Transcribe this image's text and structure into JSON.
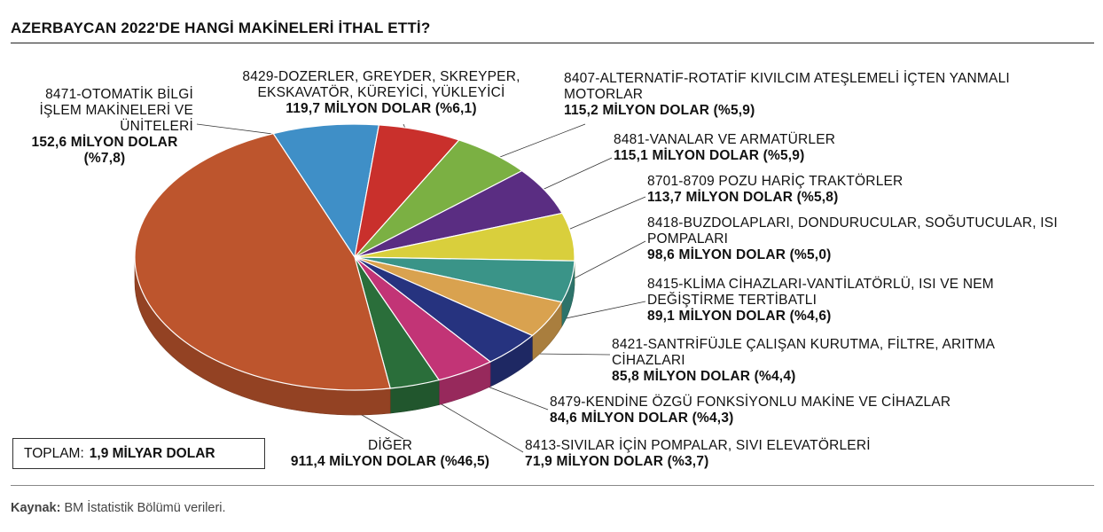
{
  "title": "AZERBAYCAN 2022'DE HANGİ MAKİNELERİ İTHAL ETTİ?",
  "total": {
    "label": "TOPLAM:",
    "value": "1,9 MİLYAR DOLAR"
  },
  "source": {
    "label": "Kaynak:",
    "text": "BM İstatistik Bölümü verileri."
  },
  "chart_data": {
    "type": "pie",
    "unit": "MİLYON DOLAR",
    "slices": [
      {
        "name": "8471-OTOMATİK BİLGİ İŞLEM MAKİNELERİ VE ÜNİTELERİ",
        "value": 152.6,
        "percent": 7.8,
        "color": "#3f8fc7",
        "value_text": "152,6 MİLYON DOLAR (%7,8)"
      },
      {
        "name": "8429-DOZERLER, GREYDER, SKREYPER, EKSKAVATÖR, KÜREYİCİ, YÜKLEYİCİ",
        "value": 119.7,
        "percent": 6.1,
        "color": "#c9302c",
        "value_text": "119,7 MİLYON DOLAR (%6,1)"
      },
      {
        "name": "8407-ALTERNATİF-ROTATİF KIVILCIM ATEŞLEMELİ İÇTEN YANMALI MOTORLAR",
        "value": 115.2,
        "percent": 5.9,
        "color": "#7bb043",
        "value_text": "115,2 MİLYON DOLAR (%5,9)"
      },
      {
        "name": "8481-VANALAR VE ARMATÜRLER",
        "value": 115.1,
        "percent": 5.9,
        "color": "#5a2d82",
        "value_text": "115,1 MİLYON DOLAR (%5,9)"
      },
      {
        "name": "8701-8709 POZU HARİÇ TRAKTÖRLER",
        "value": 113.7,
        "percent": 5.8,
        "color": "#d9cf3c",
        "value_text": "113,7 MİLYON DOLAR (%5,8)"
      },
      {
        "name": "8418-BUZDOLAPLARI, DONDURUCULAR, SOĞUTUCULAR, ISI POMPALARI",
        "value": 98.6,
        "percent": 5.0,
        "color": "#3a9488",
        "value_text": "98,6 MİLYON DOLAR (%5,0)"
      },
      {
        "name": "8415-KLİMA CİHAZLARI-VANTİLATÖRLÜ, ISI VE NEM DEĞİŞTİRME TERTİBATLI",
        "value": 89.1,
        "percent": 4.6,
        "color": "#d9a24f",
        "value_text": "89,1 MİLYON DOLAR (%4,6)"
      },
      {
        "name": "8421-SANTRİFÜJLE ÇALIŞAN KURUTMA, FİLTRE, ARITMA CİHAZLARI",
        "value": 85.8,
        "percent": 4.4,
        "color": "#26337f",
        "value_text": "85,8 MİLYON DOLAR (%4,4)"
      },
      {
        "name": "8479-KENDİNE ÖZGÜ FONKSİYONLU MAKİNE VE CİHAZLAR",
        "value": 84.6,
        "percent": 4.3,
        "color": "#c23476",
        "value_text": "84,6 MİLYON DOLAR (%4,3)"
      },
      {
        "name": "8413-SIVILAR İÇİN POMPALAR, SIVI ELEVATÖRLERİ",
        "value": 71.9,
        "percent": 3.7,
        "color": "#2a6e3a",
        "value_text": "71,9 MİLYON DOLAR (%3,7)"
      },
      {
        "name": "DİĞER",
        "value": 911.4,
        "percent": 46.5,
        "color": "#bd552d",
        "value_text": "911,4 MİLYON DOLAR (%46,5)"
      }
    ]
  },
  "labels": [
    {
      "name": "8471-OTOMATİK BİLGİ\nİŞLEM MAKİNELERİ VE\nÜNİTELERİ",
      "value": "152,6 MİLYON DOLAR\n(%7,8)"
    },
    {
      "name": "8429-DOZERLER, GREYDER, SKREYPER,\nEKSKAVATÖR, KÜREYİCİ, YÜKLEYİCİ",
      "value": "119,7 MİLYON DOLAR (%6,1)"
    },
    {
      "name": "8407-ALTERNATİF-ROTATİF KIVILCIM ATEŞLEMELİ İÇTEN YANMALI\nMOTORLAR",
      "value": "115,2 MİLYON DOLAR (%5,9)"
    },
    {
      "name": "8481-VANALAR VE ARMATÜRLER",
      "value": "115,1 MİLYON DOLAR (%5,9)"
    },
    {
      "name": "8701-8709 POZU HARİÇ TRAKTÖRLER",
      "value": "113,7 MİLYON DOLAR (%5,8)"
    },
    {
      "name": "8418-BUZDOLAPLARI, DONDURUCULAR, SOĞUTUCULAR, ISI\nPOMPALARI",
      "value": "98,6 MİLYON DOLAR (%5,0)"
    },
    {
      "name": "8415-KLİMA CİHAZLARI-VANTİLATÖRLÜ, ISI VE NEM\nDEĞİŞTİRME TERTİBATLI",
      "value": "89,1 MİLYON DOLAR (%4,6)"
    },
    {
      "name": "8421-SANTRİFÜJLE ÇALIŞAN KURUTMA, FİLTRE, ARITMA\nCİHAZLARI",
      "value": "85,8 MİLYON DOLAR (%4,4)"
    },
    {
      "name": "8479-KENDİNE ÖZGÜ FONKSİYONLU MAKİNE VE CİHAZLAR",
      "value": "84,6 MİLYON DOLAR (%4,3)"
    },
    {
      "name": "8413-SIVILAR İÇİN POMPALAR, SIVI ELEVATÖRLERİ",
      "value": "71,9 MİLYON DOLAR (%3,7)"
    },
    {
      "name": "DİĞER",
      "value": "911,4 MİLYON DOLAR (%46,5)"
    }
  ]
}
